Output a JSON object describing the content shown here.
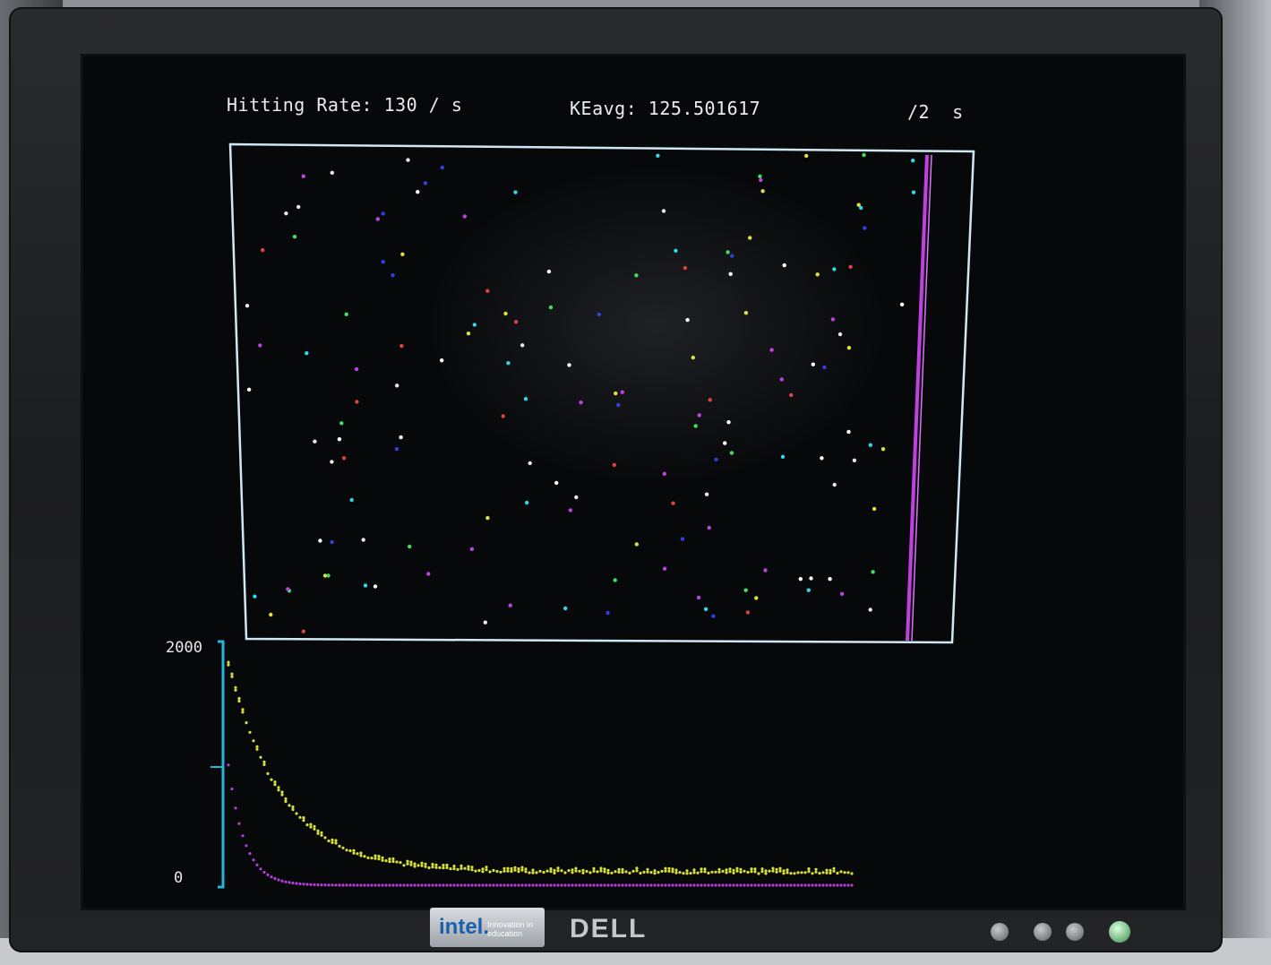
{
  "hud": {
    "hitting_rate": "Hitting Rate: 130 / s",
    "ke_avg": "KEavg: 125.501617",
    "time": "/2  s"
  },
  "graph": {
    "y_max_label": "2000",
    "y_min_label": "0"
  },
  "brand": {
    "intel_word": "intel.",
    "intel_tagline": "Innovation in education",
    "dell": "DELL"
  },
  "colors": {
    "box_border": "#cfe8f5",
    "piston": "#c040e0",
    "axis": "#22b8d8",
    "curve_upper": "#d8e040",
    "curve_lower": "#b040d8",
    "particle_palette": [
      "#e8e8e8",
      "#30d8e8",
      "#40e060",
      "#e04040",
      "#3040e0",
      "#c040e0",
      "#e0e040",
      "#ffffff"
    ]
  },
  "icons": {
    "buttons": [
      "menu-button-icon",
      "minus-button-icon",
      "plus-button-icon",
      "power-button-icon"
    ]
  }
}
